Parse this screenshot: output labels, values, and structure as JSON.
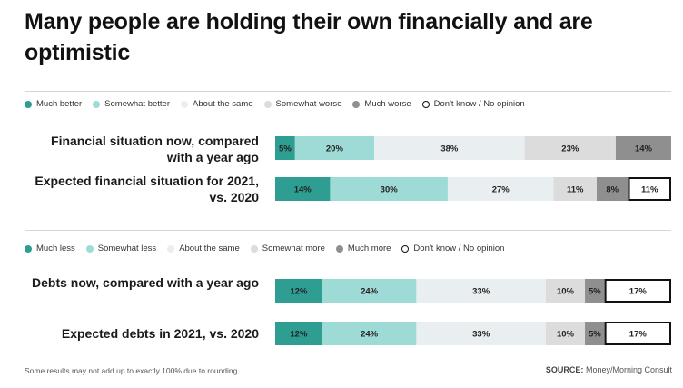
{
  "title": "Many people are holding their own financially and are optimistic",
  "colors": [
    "#2f9e92",
    "#9fdbd6",
    "#e9eff1",
    "#dcdcdc",
    "#8f8f8f",
    "#ffffff"
  ],
  "chart_data": [
    {
      "type": "bar",
      "stacked": true,
      "orientation": "horizontal",
      "legend": [
        "Much better",
        "Somewhat better",
        "About the same",
        "Somewhat worse",
        "Much worse",
        "Don't know / No opinion"
      ],
      "rows": [
        {
          "label": "Financial situation now, compared with a year ago",
          "values": [
            5,
            20,
            38,
            23,
            14,
            null
          ]
        },
        {
          "label": "Expected financial situation for 2021, vs. 2020",
          "values": [
            14,
            30,
            27,
            11,
            8,
            11
          ]
        }
      ]
    },
    {
      "type": "bar",
      "stacked": true,
      "orientation": "horizontal",
      "legend": [
        "Much less",
        "Somewhat less",
        "About the same",
        "Somewhat more",
        "Much more",
        "Don't know / No opinion"
      ],
      "rows": [
        {
          "label": "Debts now, compared with a year ago",
          "values": [
            12,
            24,
            33,
            10,
            5,
            17
          ]
        },
        {
          "label": "Expected debts in 2021, vs. 2020",
          "values": [
            12,
            24,
            33,
            10,
            5,
            17
          ]
        }
      ]
    }
  ],
  "footnote": "Some results may not add up to exactly 100% due to rounding.",
  "source": {
    "prefix": "SOURCE:",
    "text": "Money/Morning Consult"
  }
}
